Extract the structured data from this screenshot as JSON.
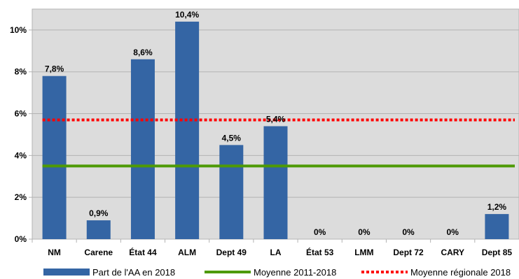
{
  "chart_data": {
    "type": "bar",
    "categories": [
      "NM",
      "Carene",
      "État 44",
      "ALM",
      "Dept 49",
      "LA",
      "État 53",
      "LMM",
      "Dept 72",
      "CARY",
      "Dept 85"
    ],
    "series": [
      {
        "name": "Part de l'AA en 2018",
        "type": "bar",
        "color": "#3465a4",
        "values": [
          7.8,
          0.9,
          8.6,
          10.4,
          4.5,
          5.4,
          0,
          0,
          0,
          0,
          1.2
        ],
        "labels": [
          "7,8%",
          "0,9%",
          "8,6%",
          "10,4%",
          "4,5%",
          "5,4%",
          "0%",
          "0%",
          "0%",
          "0%",
          "1,2%"
        ]
      },
      {
        "name": "Moyenne 2011-2018",
        "type": "line",
        "color": "#4e9a06",
        "value": 3.5
      },
      {
        "name": "Moyenne régionale 2018",
        "type": "line",
        "style": "dotted",
        "color": "#ff0000",
        "value": 5.7
      }
    ],
    "ylim": [
      0,
      11
    ],
    "yticks": [
      0,
      2,
      4,
      6,
      8,
      10
    ],
    "ytick_labels": [
      "0%",
      "2%",
      "4%",
      "6%",
      "8%",
      "10%"
    ],
    "grid": true,
    "legend_position": "bottom",
    "plot_background": "#dcdcdc"
  }
}
